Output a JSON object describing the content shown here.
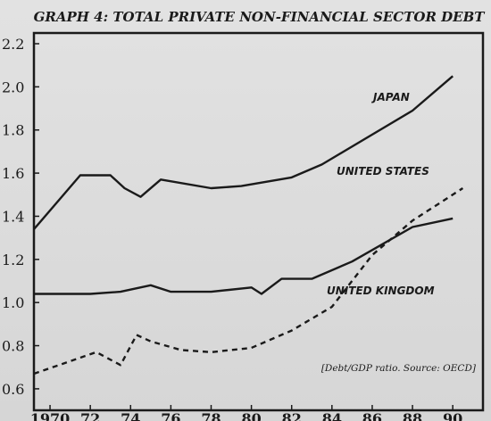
{
  "chart_data": {
    "type": "line",
    "title": "GRAPH 4: TOTAL PRIVATE NON-FINANCIAL SECTOR DEBT",
    "note": "[Debt/GDP ratio. Source: OECD]",
    "xlim": [
      1969.2,
      1991.5
    ],
    "ylim": [
      0.55,
      2.2
    ],
    "x_ticks": [
      1970,
      1972,
      1974,
      1976,
      1978,
      1980,
      1982,
      1984,
      1986,
      1988,
      1990
    ],
    "x_tick_labels": [
      "1970",
      "72",
      "74",
      "76",
      "78",
      "80",
      "82",
      "84",
      "86",
      "88",
      "90"
    ],
    "y_ticks": [
      0.6,
      0.8,
      1.0,
      1.2,
      1.4,
      1.6,
      1.8,
      2.0,
      2.2
    ],
    "y_tick_labels": [
      "0.6",
      "0.8",
      "1.0",
      "1.2",
      "1.4",
      "1.6",
      "1.8",
      "2.0",
      "2.2"
    ],
    "grid": false,
    "legend": "none (series labeled directly on lines)",
    "series": [
      {
        "name": "JAPAN",
        "style": "solid",
        "color": "#1a1a1a",
        "x": [
          1969.2,
          1971.5,
          1973,
          1973.7,
          1974.5,
          1975.5,
          1978,
          1979.5,
          1982,
          1983.5,
          1988,
          1990
        ],
        "y": [
          1.34,
          1.59,
          1.59,
          1.53,
          1.49,
          1.57,
          1.53,
          1.54,
          1.58,
          1.64,
          1.89,
          2.05
        ]
      },
      {
        "name": "UNITED STATES",
        "style": "solid",
        "color": "#1a1a1a",
        "x": [
          1969.2,
          1972,
          1973.5,
          1975,
          1976,
          1978,
          1980,
          1980.5,
          1981.5,
          1983,
          1985,
          1988,
          1990
        ],
        "y": [
          1.04,
          1.04,
          1.05,
          1.08,
          1.05,
          1.05,
          1.07,
          1.04,
          1.11,
          1.11,
          1.19,
          1.35,
          1.39
        ]
      },
      {
        "name": "UNITED KINGDOM",
        "style": "dashed",
        "color": "#1a1a1a",
        "x": [
          1969.2,
          1972.3,
          1973.5,
          1974.3,
          1975,
          1976.5,
          1978,
          1980,
          1982,
          1984,
          1986,
          1988,
          1990.5
        ],
        "y": [
          0.67,
          0.77,
          0.71,
          0.85,
          0.82,
          0.78,
          0.77,
          0.79,
          0.87,
          0.98,
          1.22,
          1.38,
          1.53
        ]
      }
    ]
  }
}
